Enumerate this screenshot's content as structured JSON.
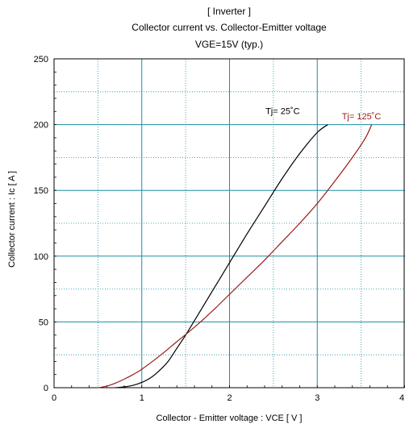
{
  "chart_data": {
    "type": "line",
    "title_lines": [
      "[ Inverter ]",
      "Collector current  vs.  Collector-Emitter voltage",
      "VGE=15V  (typ.)"
    ],
    "xlabel": "Collector - Emitter voltage  :  VCE  [ V ]",
    "ylabel": "Collector current  :  Ic  [ A ]",
    "xlim": [
      0,
      4
    ],
    "ylim": [
      0,
      250
    ],
    "x_ticks": [
      0,
      1,
      2,
      3,
      4
    ],
    "y_ticks": [
      0,
      50,
      100,
      150,
      200,
      250
    ],
    "grid": true,
    "grid_minor_x": 0.5,
    "grid_minor_y": 25,
    "colors": {
      "axis": "#000000",
      "grid_major": "#1a8fa0",
      "grid_minor": "#1a8fa0"
    },
    "series": [
      {
        "name": "Tj= 25˚C",
        "color": "#000000",
        "points": [
          [
            0.7,
            0
          ],
          [
            0.8,
            0.6
          ],
          [
            0.9,
            1.8
          ],
          [
            1.0,
            4
          ],
          [
            1.1,
            7.5
          ],
          [
            1.2,
            13
          ],
          [
            1.3,
            20
          ],
          [
            1.4,
            30
          ],
          [
            1.5,
            40
          ],
          [
            1.6,
            51
          ],
          [
            1.7,
            62
          ],
          [
            1.8,
            73
          ],
          [
            1.9,
            84
          ],
          [
            2.0,
            95
          ],
          [
            2.2,
            117
          ],
          [
            2.4,
            138
          ],
          [
            2.6,
            159
          ],
          [
            2.8,
            178
          ],
          [
            3.0,
            194
          ],
          [
            3.12,
            200
          ]
        ]
      },
      {
        "name": "Tj= 125˚C",
        "color": "#9b1b1b",
        "points": [
          [
            0.5,
            0
          ],
          [
            0.6,
            1.2
          ],
          [
            0.7,
            3.5
          ],
          [
            0.8,
            6.5
          ],
          [
            0.9,
            10
          ],
          [
            1.0,
            14
          ],
          [
            1.2,
            24
          ],
          [
            1.4,
            35
          ],
          [
            1.6,
            46
          ],
          [
            1.8,
            58
          ],
          [
            2.0,
            71
          ],
          [
            2.2,
            84
          ],
          [
            2.4,
            97
          ],
          [
            2.6,
            111
          ],
          [
            2.8,
            125
          ],
          [
            3.0,
            140
          ],
          [
            3.2,
            157
          ],
          [
            3.4,
            175
          ],
          [
            3.55,
            190
          ],
          [
            3.62,
            200
          ]
        ]
      }
    ]
  }
}
